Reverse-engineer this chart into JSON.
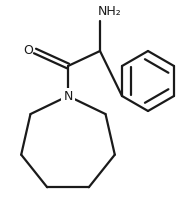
{
  "background_color": "#ffffff",
  "line_color": "#1a1a1a",
  "text_color": "#1a1a1a",
  "line_width": 1.6,
  "font_size": 9,
  "nh2_label": "NH₂",
  "o_label": "O",
  "n_label": "N"
}
